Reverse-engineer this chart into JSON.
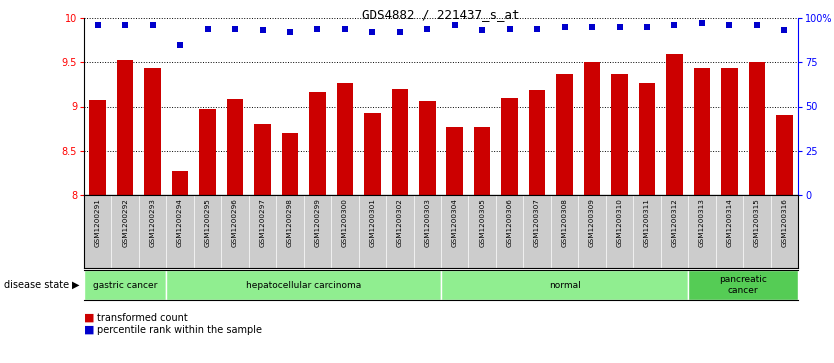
{
  "title": "GDS4882 / 221437_s_at",
  "categories": [
    "GSM1200291",
    "GSM1200292",
    "GSM1200293",
    "GSM1200294",
    "GSM1200295",
    "GSM1200296",
    "GSM1200297",
    "GSM1200298",
    "GSM1200299",
    "GSM1200300",
    "GSM1200301",
    "GSM1200302",
    "GSM1200303",
    "GSM1200304",
    "GSM1200305",
    "GSM1200306",
    "GSM1200307",
    "GSM1200308",
    "GSM1200309",
    "GSM1200310",
    "GSM1200311",
    "GSM1200312",
    "GSM1200313",
    "GSM1200314",
    "GSM1200315",
    "GSM1200316"
  ],
  "bar_values": [
    9.07,
    9.52,
    9.44,
    8.27,
    8.97,
    9.08,
    8.8,
    8.7,
    9.16,
    9.27,
    8.93,
    9.2,
    9.06,
    8.77,
    8.77,
    9.1,
    9.19,
    9.37,
    9.5,
    9.37,
    9.27,
    9.59,
    9.44,
    9.44,
    9.5,
    8.9
  ],
  "percentile_values": [
    96,
    96,
    96,
    85,
    94,
    94,
    93,
    92,
    94,
    94,
    92,
    92,
    94,
    96,
    93,
    94,
    94,
    95,
    95,
    95,
    95,
    96,
    97,
    96,
    96,
    93
  ],
  "bar_color": "#cc0000",
  "percentile_color": "#0000cc",
  "ylim_left": [
    8.0,
    10.0
  ],
  "ylim_right": [
    0,
    100
  ],
  "yticks_left": [
    8.0,
    8.5,
    9.0,
    9.5,
    10.0
  ],
  "ytick_labels_left": [
    "8",
    "8.5",
    "9",
    "9.5",
    "10"
  ],
  "yticks_right": [
    0,
    25,
    50,
    75,
    100
  ],
  "ytick_labels_right": [
    "0",
    "25",
    "50",
    "75",
    "100%"
  ],
  "disease_groups": [
    {
      "label": "gastric cancer",
      "start": 0,
      "end": 3,
      "color": "#90ee90"
    },
    {
      "label": "hepatocellular carcinoma",
      "start": 3,
      "end": 13,
      "color": "#90ee90"
    },
    {
      "label": "normal",
      "start": 13,
      "end": 22,
      "color": "#90ee90"
    },
    {
      "label": "pancreatic\ncancer",
      "start": 22,
      "end": 26,
      "color": "#55cc55"
    }
  ],
  "legend_bar_label": "transformed count",
  "legend_dot_label": "percentile rank within the sample",
  "disease_state_label": "disease state"
}
